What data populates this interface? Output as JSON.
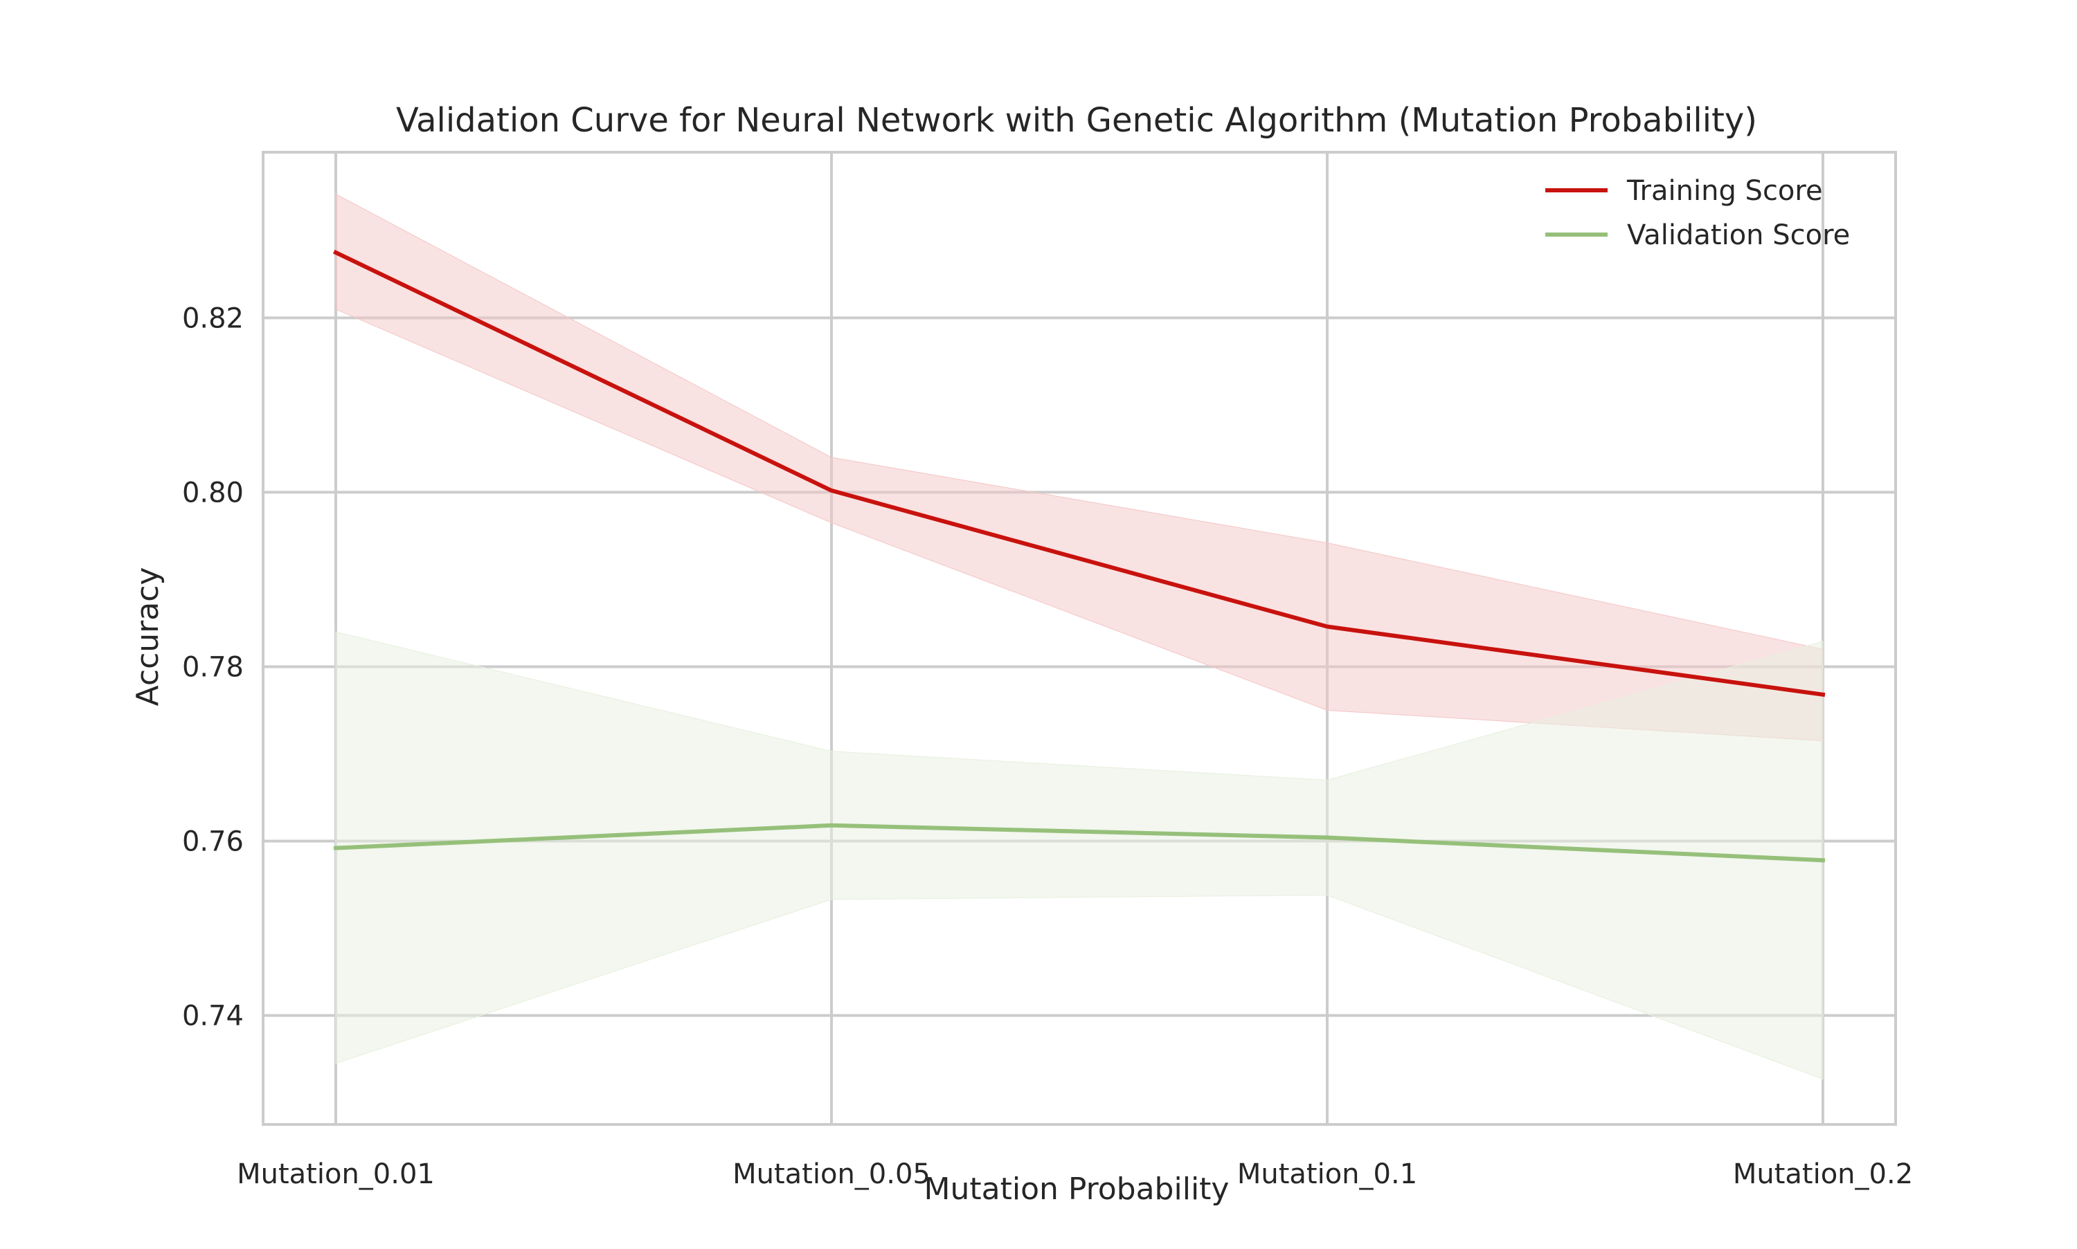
{
  "chart_data": {
    "type": "line",
    "title": "Validation Curve for Neural Network with Genetic Algorithm (Mutation Probability)",
    "xlabel": "Mutation Probability",
    "ylabel": "Accuracy",
    "categories": [
      "Mutation_0.01",
      "Mutation_0.05",
      "Mutation_0.1",
      "Mutation_0.2"
    ],
    "ylim": [
      0.7275,
      0.839
    ],
    "yticks": [
      0.74,
      0.76,
      0.78,
      0.8,
      0.82
    ],
    "grid": true,
    "legend_position": "top-right",
    "series": [
      {
        "name": "Training Score",
        "color": "#c8120e",
        "band_color": "#f4c6c6",
        "values": [
          0.8275,
          0.8002,
          0.7846,
          0.7768
        ],
        "lower": [
          0.821,
          0.7965,
          0.775,
          0.7715
        ],
        "upper": [
          0.8342,
          0.804,
          0.7942,
          0.782
        ]
      },
      {
        "name": "Validation Score",
        "color": "#96c07a",
        "band_color": "#e8efdf",
        "values": [
          0.7592,
          0.7618,
          0.7604,
          0.7578
        ],
        "lower": [
          0.7345,
          0.7533,
          0.7538,
          0.7327
        ],
        "upper": [
          0.784,
          0.7703,
          0.767,
          0.7829
        ]
      }
    ]
  }
}
